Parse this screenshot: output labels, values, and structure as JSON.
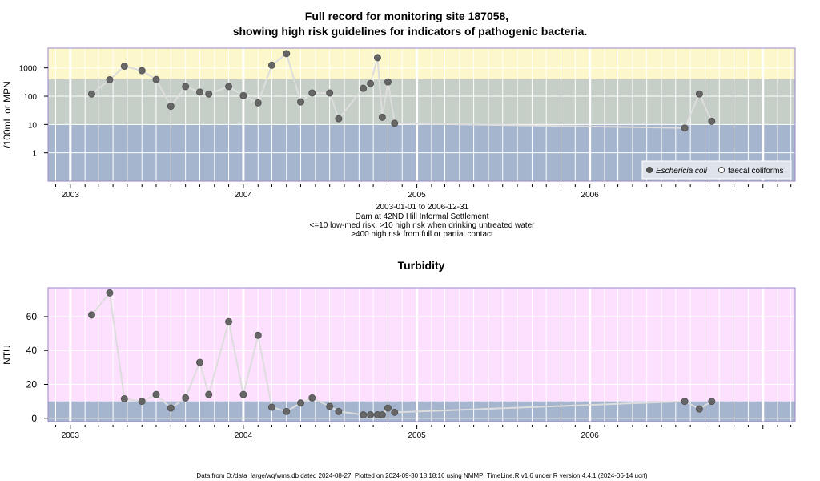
{
  "title_line1": "Full record for monitoring site 187058,",
  "title_line2": "showing high risk guidelines for indicators of pathogenic bacteria.",
  "subtitle_lines": [
    "2003-01-01 to 2006-12-31",
    "Dam at 42ND Hill Informal Settlement",
    "<=10 low-med risk; >10 high risk when drinking untreated water",
    ">400 high risk from full or partial contact"
  ],
  "footer": "Data from D:/data_large/wq/wms.db dated 2024-08-27. Plotted on 2024-09-30 18:18:16 using NMMP_TimeLine.R v1.6 under R version 4.4.1 (2024-06-14 ucrt)",
  "colors": {
    "high_contact": "#fdf7cc",
    "high_drinking": "#c6cfc7",
    "low_med": "#a4b5cd",
    "turbidity_high": "#fde0fd",
    "turbidity_low": "#a4b5cd",
    "frame": "#9b87c8",
    "point": "#666666",
    "line": "#dddddd"
  },
  "chart_data": [
    {
      "type": "scatter",
      "scale": "log",
      "ylabel": "/100mL or MPN",
      "yticks": [
        1,
        10,
        100,
        1000
      ],
      "ytick_labels": [
        "1",
        "10",
        "100",
        "1000"
      ],
      "xticks": [
        "2003",
        "2004",
        "2005",
        "2006"
      ],
      "xlim": [
        "2002-11-15",
        "2007-03-10"
      ],
      "ylim": [
        0.1,
        5000
      ],
      "bands": [
        {
          "from": 0.1,
          "to": 10,
          "color": "#a4b5cd"
        },
        {
          "from": 10,
          "to": 400,
          "color": "#c6cfc7"
        },
        {
          "from": 400,
          "to": 5000,
          "color": "#fdf7cc"
        }
      ],
      "legend": {
        "position": "bottom-right",
        "items": [
          "Eschericia coli",
          "faecal coliforms"
        ]
      },
      "series": [
        {
          "name": "Eschericia coli",
          "marker": "filled-circle",
          "points": [
            [
              "2003-02-15",
              120
            ],
            [
              "2003-03-25",
              380
            ],
            [
              "2003-04-25",
              1150
            ],
            [
              "2003-06-01",
              800
            ],
            [
              "2003-07-01",
              390
            ],
            [
              "2003-08-01",
              44
            ],
            [
              "2003-09-01",
              220
            ],
            [
              "2003-10-01",
              140
            ],
            [
              "2003-10-20",
              120
            ],
            [
              "2003-12-01",
              220
            ],
            [
              "2004-01-01",
              105
            ],
            [
              "2004-02-01",
              58
            ],
            [
              "2004-03-01",
              1250
            ],
            [
              "2004-04-01",
              3200
            ],
            [
              "2004-05-01",
              63
            ],
            [
              "2004-05-25",
              130
            ],
            [
              "2004-07-01",
              130
            ],
            [
              "2004-07-20",
              16
            ],
            [
              "2004-09-10",
              190
            ],
            [
              "2004-09-25",
              280
            ],
            [
              "2004-10-10",
              2300
            ],
            [
              "2004-10-20",
              18
            ],
            [
              "2004-11-01",
              320
            ],
            [
              "2004-11-15",
              11
            ],
            [
              "2006-07-20",
              7.5
            ],
            [
              "2006-08-20",
              120
            ],
            [
              "2006-09-15",
              13
            ]
          ]
        },
        {
          "name": "faecal coliforms",
          "marker": "open-circle",
          "points": []
        }
      ]
    },
    {
      "type": "scatter",
      "title": "Turbidity",
      "ylabel": "NTU",
      "yticks": [
        0,
        20,
        40,
        60
      ],
      "xticks": [
        "2003",
        "2004",
        "2005",
        "2006"
      ],
      "xlim": [
        "2002-11-15",
        "2007-03-10"
      ],
      "ylim": [
        -2,
        77
      ],
      "bands": [
        {
          "from": -2,
          "to": 10,
          "color": "#a4b5cd"
        },
        {
          "from": 10,
          "to": 77,
          "color": "#fde0fd"
        }
      ],
      "series": [
        {
          "name": "",
          "marker": "filled-circle",
          "points": [
            [
              "2003-02-15",
              61
            ],
            [
              "2003-03-25",
              74
            ],
            [
              "2003-04-25",
              11.5
            ],
            [
              "2003-06-01",
              10
            ],
            [
              "2003-07-01",
              14
            ],
            [
              "2003-08-01",
              6
            ],
            [
              "2003-09-01",
              12
            ],
            [
              "2003-10-01",
              33
            ],
            [
              "2003-10-20",
              14
            ],
            [
              "2003-12-01",
              57
            ],
            [
              "2004-01-01",
              14
            ],
            [
              "2004-02-01",
              49
            ],
            [
              "2004-03-01",
              6.5
            ],
            [
              "2004-04-01",
              4
            ],
            [
              "2004-05-01",
              9
            ],
            [
              "2004-05-25",
              12
            ],
            [
              "2004-07-01",
              7
            ],
            [
              "2004-07-20",
              4
            ],
            [
              "2004-09-10",
              2
            ],
            [
              "2004-09-25",
              2
            ],
            [
              "2004-10-10",
              2
            ],
            [
              "2004-10-20",
              2
            ],
            [
              "2004-11-01",
              6
            ],
            [
              "2004-11-15",
              3.5
            ],
            [
              "2006-07-20",
              10
            ],
            [
              "2006-08-20",
              5.5
            ],
            [
              "2006-09-15",
              10
            ]
          ]
        }
      ]
    }
  ]
}
